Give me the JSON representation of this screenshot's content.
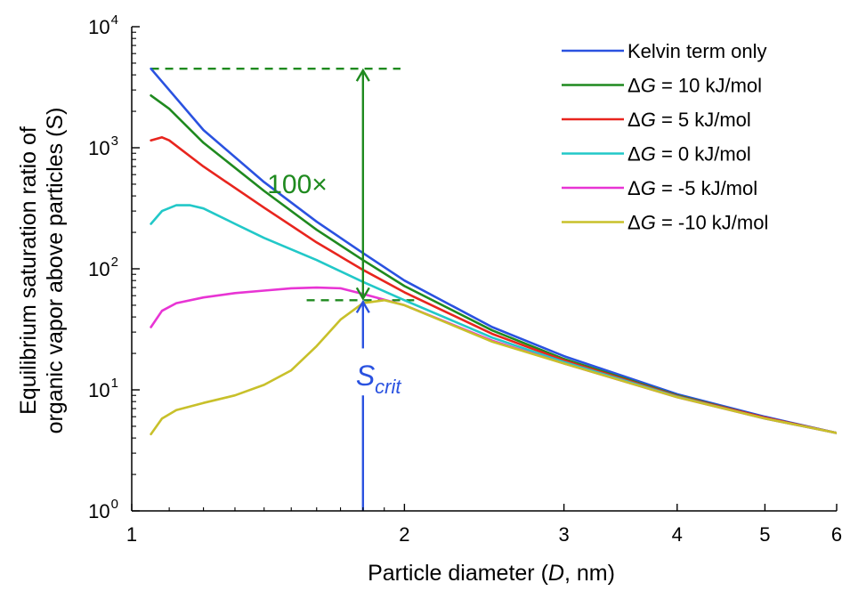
{
  "chart_data": {
    "type": "line",
    "xlabel_parts": [
      "Particle diameter (",
      "D",
      ", nm)"
    ],
    "ylabel_lines": [
      "Equilibrium saturation ratio of",
      "organic vapor above particles (S)"
    ],
    "xscale": "log",
    "yscale": "log",
    "xlim": [
      1,
      6
    ],
    "ylim": [
      1,
      10000
    ],
    "xticks": [
      {
        "value": 1,
        "label": "1"
      },
      {
        "value": 2,
        "label": "2"
      },
      {
        "value": 3,
        "label": "3"
      },
      {
        "value": 4,
        "label": "4"
      },
      {
        "value": 5,
        "label": "5"
      },
      {
        "value": 6,
        "label": "6"
      }
    ],
    "yticks": [
      {
        "value": 1,
        "base": "10",
        "exp": "0"
      },
      {
        "value": 10,
        "base": "10",
        "exp": "1"
      },
      {
        "value": 100,
        "base": "10",
        "exp": "2"
      },
      {
        "value": 1000,
        "base": "10",
        "exp": "3"
      },
      {
        "value": 10000,
        "base": "10",
        "exp": "4"
      }
    ],
    "grid": false,
    "legend_position": "top-right",
    "series": [
      {
        "name": "Kelvin term only",
        "name_parts": [
          "",
          "",
          "Kelvin term only"
        ],
        "color": "#2a52e0",
        "x": [
          1.05,
          1.2,
          1.4,
          1.6,
          1.8,
          2.0,
          2.5,
          3.0,
          4.0,
          5.0,
          6.0
        ],
        "y": [
          4500,
          1400,
          520,
          245,
          135,
          80,
          33,
          19,
          9.2,
          6.0,
          4.4
        ]
      },
      {
        "name": "ΔG = 10 kJ/mol",
        "name_parts": [
          "Δ",
          "G",
          " = 10 kJ/mol"
        ],
        "color": "#1f8a1f",
        "x": [
          1.05,
          1.1,
          1.2,
          1.4,
          1.6,
          1.8,
          2.0,
          2.5,
          3.0,
          4.0,
          5.0,
          6.0
        ],
        "y": [
          2700,
          2100,
          1100,
          440,
          210,
          118,
          72,
          31,
          18,
          9.0,
          5.9,
          4.4
        ]
      },
      {
        "name": "ΔG = 5 kJ/mol",
        "name_parts": [
          "Δ",
          "G",
          " = 5 kJ/mol"
        ],
        "color": "#e8251e",
        "x": [
          1.05,
          1.08,
          1.1,
          1.2,
          1.4,
          1.6,
          1.8,
          2.0,
          2.5,
          3.0,
          4.0,
          5.0,
          6.0
        ],
        "y": [
          1150,
          1220,
          1150,
          700,
          320,
          165,
          98,
          64,
          29,
          17.5,
          8.9,
          5.9,
          4.4
        ]
      },
      {
        "name": "ΔG = 0 kJ/mol",
        "name_parts": [
          "Δ",
          "G",
          " = 0 kJ/mol"
        ],
        "color": "#22c8c8",
        "x": [
          1.05,
          1.08,
          1.12,
          1.16,
          1.2,
          1.3,
          1.4,
          1.6,
          1.8,
          2.0,
          2.5,
          3.0,
          4.0,
          5.0,
          6.0
        ],
        "y": [
          235,
          300,
          335,
          335,
          315,
          235,
          180,
          118,
          78,
          55,
          27,
          17,
          8.8,
          5.8,
          4.4
        ]
      },
      {
        "name": "ΔG = -5 kJ/mol",
        "name_parts": [
          "Δ",
          "G",
          " = -5 kJ/mol"
        ],
        "color": "#e834d4",
        "x": [
          1.05,
          1.08,
          1.12,
          1.2,
          1.3,
          1.4,
          1.5,
          1.6,
          1.7,
          1.8,
          2.0,
          2.5,
          3.0,
          4.0,
          5.0,
          6.0
        ],
        "y": [
          33,
          45,
          52,
          58,
          63,
          66,
          69,
          70,
          69,
          62,
          50,
          25.5,
          16.5,
          8.7,
          5.8,
          4.4
        ]
      },
      {
        "name": "ΔG = -10 kJ/mol",
        "name_parts": [
          "Δ",
          "G",
          " = -10 kJ/mol"
        ],
        "color": "#c8c02a",
        "x": [
          1.05,
          1.08,
          1.12,
          1.2,
          1.3,
          1.4,
          1.5,
          1.6,
          1.7,
          1.8,
          1.9,
          2.0,
          2.5,
          3.0,
          4.0,
          5.0,
          6.0
        ],
        "y": [
          4.3,
          5.8,
          6.8,
          7.8,
          9.0,
          11,
          14.5,
          23,
          38,
          52,
          55,
          50,
          25,
          16.5,
          8.7,
          5.8,
          4.4
        ]
      }
    ],
    "annotations": {
      "top_dashed_y": 4500,
      "bottom_dashed_y": 55,
      "bracket_x": 1.8,
      "dashed_color": "#1f8a1f",
      "bracket_color": "#1f8a1f",
      "scrit_color": "#2a52e0",
      "label_100x": "100×",
      "scrit_main": "S",
      "scrit_sub": "crit"
    }
  }
}
